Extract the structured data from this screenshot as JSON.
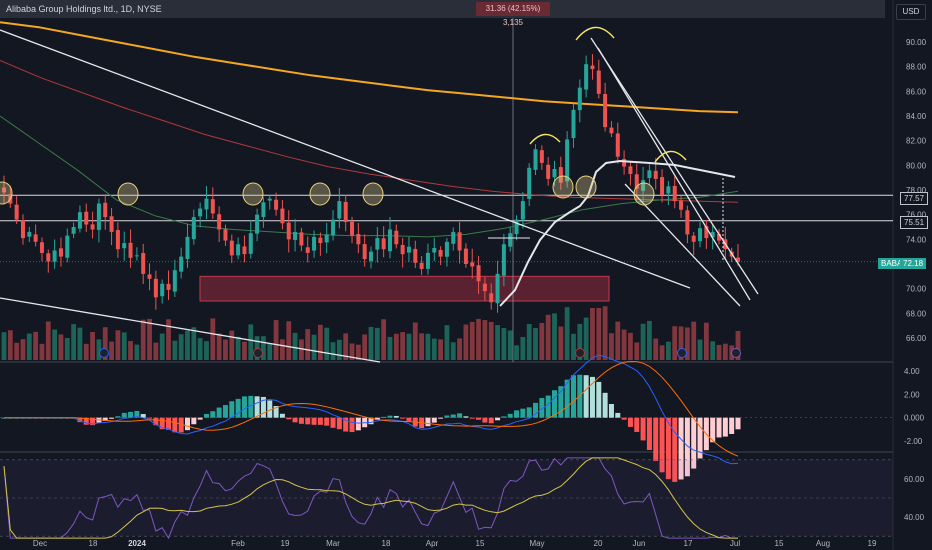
{
  "header": {
    "symbol_title": "Alibaba Group Holdings ltd., 1D, NYSE",
    "measure_readout": "31.36 (42.15%) 3,135",
    "currency": "USD"
  },
  "price_tags": {
    "level_upper": "77.57",
    "level_lower": "75.51",
    "symbol": "BABA",
    "last": "72.18"
  },
  "colors": {
    "background": "#131722",
    "up_candle": "#26a69a",
    "down_candle": "#ef5350",
    "ma_orange": "#f5a623",
    "ma_red": "#b03a3a",
    "ma_green": "#3c7a4a",
    "zone_fill": "#8b2a3a",
    "highlight_yellow": "#f5e663"
  },
  "chart_data": [
    {
      "type": "candlestick",
      "title": "",
      "y_ticks": [
        "90.00",
        "88.00",
        "86.00",
        "84.00",
        "82.00",
        "80.00",
        "78.00",
        "76.00",
        "74.00",
        "72.00",
        "70.00",
        "68.00",
        "66.00"
      ],
      "x_ticks": [
        "Dec",
        "18",
        "2024",
        "Feb",
        "19",
        "Mar",
        "18",
        "Apr",
        "15",
        "May",
        "20",
        "Jun",
        "17",
        "Jul",
        "15",
        "Aug",
        "19"
      ],
      "ylim": [
        65,
        92
      ],
      "levels": [
        77.57,
        75.51
      ],
      "zone": {
        "from": 69.0,
        "to": 71.0
      },
      "last_price": 72.18,
      "close": [
        77.8,
        76.9,
        75.6,
        74.1,
        74.6,
        73.8,
        72.9,
        72.2,
        73.1,
        72.6,
        74.3,
        75.0,
        76.2,
        75.2,
        74.8,
        76.9,
        75.8,
        74.6,
        73.2,
        73.7,
        72.5,
        72.7,
        71.2,
        70.8,
        69.3,
        70.4,
        69.9,
        71.5,
        72.6,
        74.2,
        75.8,
        76.5,
        77.3,
        76.1,
        74.8,
        73.9,
        72.7,
        73.6,
        72.8,
        74.5,
        76.0,
        77.0,
        77.3,
        76.4,
        75.3,
        74.0,
        74.6,
        73.5,
        72.9,
        74.2,
        73.7,
        74.4,
        75.6,
        77.1,
        75.4,
        74.3,
        73.6,
        72.4,
        73.0,
        74.1,
        73.2,
        74.8,
        73.6,
        72.8,
        73.4,
        72.1,
        71.6,
        72.9,
        73.3,
        72.6,
        73.8,
        74.6,
        73.1,
        72.0,
        71.8,
        70.6,
        69.8,
        68.9,
        71.2,
        73.6,
        74.5,
        75.6,
        77.1,
        79.8,
        81.3,
        80.2,
        78.9,
        79.7,
        78.6,
        82.1,
        84.5,
        86.3,
        88.2,
        87.8,
        85.8,
        83.1,
        82.6,
        80.7,
        79.9,
        79.3,
        78.1,
        78.8,
        79.6,
        78.9,
        77.6,
        78.3,
        77.1,
        76.4,
        74.4,
        73.8,
        74.9,
        74.1,
        74.6,
        73.9,
        73.2,
        72.6,
        72.18
      ],
      "ma_orange": [
        91.6,
        91.2,
        90.6,
        90.0,
        89.4,
        88.8,
        88.3,
        87.8,
        87.3,
        86.9,
        86.5,
        86.1,
        85.8,
        85.5,
        85.2,
        85.0,
        84.8,
        84.6,
        84.4,
        84.3
      ],
      "ma_red": [
        88.5,
        87.1,
        85.9,
        84.7,
        83.6,
        82.5,
        81.6,
        80.7,
        79.9,
        79.3,
        78.8,
        78.3,
        77.9,
        77.6,
        77.4,
        77.3,
        77.2,
        77.1,
        77.0
      ],
      "ma_green": [
        84.0,
        81.8,
        79.6,
        77.2,
        75.9,
        75.1,
        74.8,
        74.6,
        74.4,
        74.3,
        74.3,
        74.2,
        74.4,
        74.9,
        75.6,
        76.4,
        76.9,
        77.2,
        77.4,
        77.9
      ]
    },
    {
      "type": "histogram",
      "title": "",
      "y_ticks": [
        "4.00",
        "2.00",
        "0.000",
        "-2.00"
      ],
      "ylim": [
        -3.2,
        4.6
      ]
    },
    {
      "type": "line",
      "title": "",
      "y_ticks": [
        "60.00",
        "40.00"
      ],
      "ylim": [
        28,
        72
      ]
    }
  ]
}
